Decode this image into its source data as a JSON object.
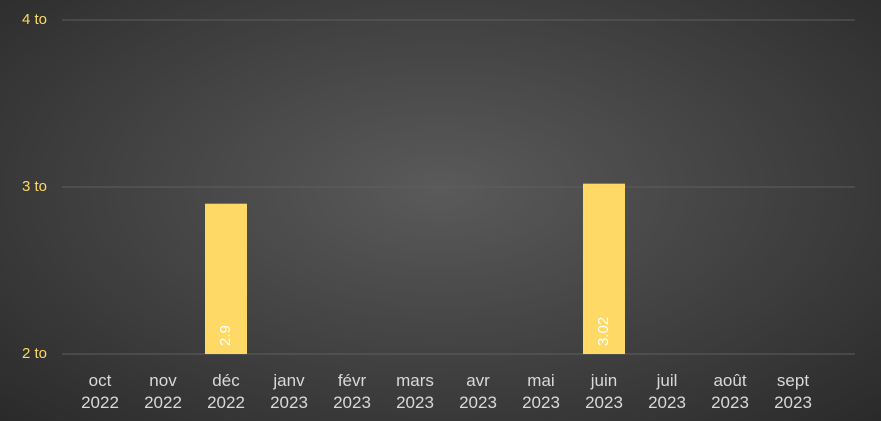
{
  "chart_data": {
    "type": "bar",
    "categories": [
      "oct 2022",
      "nov 2022",
      "déc 2022",
      "janv 2023",
      "févr 2023",
      "mars 2023",
      "avr 2023",
      "mai 2023",
      "juin 2023",
      "juil 2023",
      "août 2023",
      "sept 2023"
    ],
    "values": [
      null,
      null,
      2.9,
      null,
      null,
      null,
      null,
      null,
      3.02,
      null,
      null,
      null
    ],
    "value_labels": [
      null,
      null,
      "2.9",
      null,
      null,
      null,
      null,
      null,
      "3.02",
      null,
      null,
      null
    ],
    "color": "#ffd966",
    "ylim": [
      2,
      4
    ],
    "yticks": [
      {
        "value": 2,
        "label": "2 to"
      },
      {
        "value": 3,
        "label": "3 to"
      },
      {
        "value": 4,
        "label": "4 to"
      }
    ],
    "grid": true
  }
}
